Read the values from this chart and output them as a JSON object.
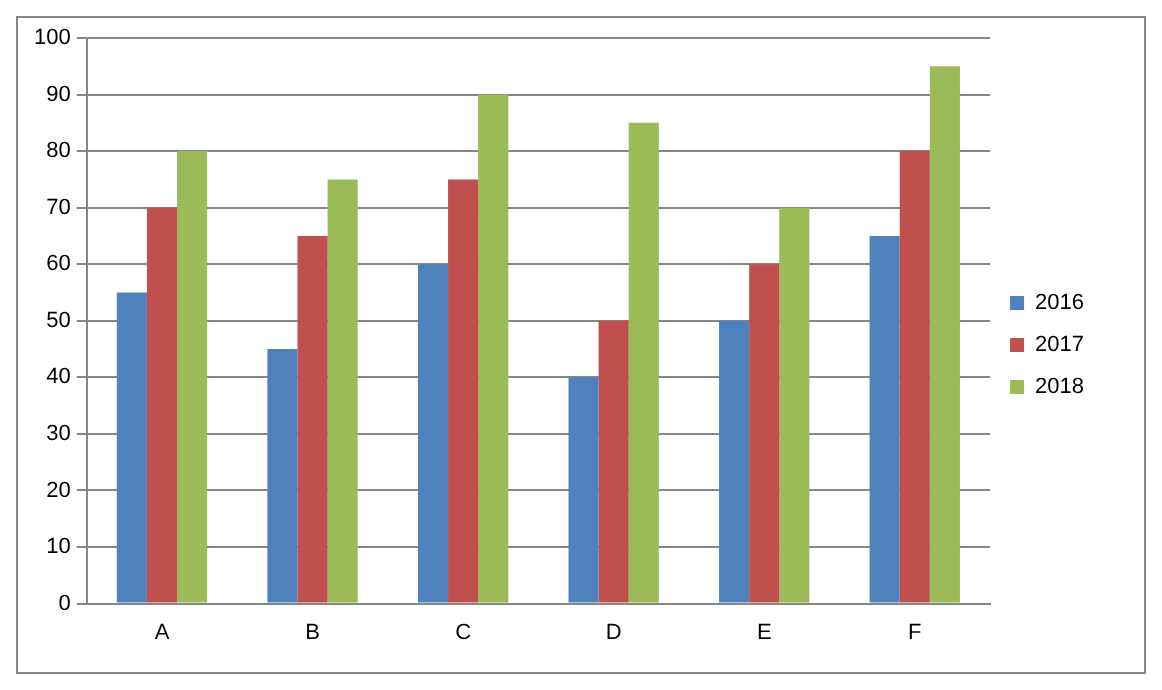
{
  "chart_data": {
    "type": "bar",
    "categories": [
      "A",
      "B",
      "C",
      "D",
      "E",
      "F"
    ],
    "series": [
      {
        "name": "2016",
        "color": "#4f81bd",
        "values": [
          55,
          45,
          60,
          40,
          50,
          65
        ]
      },
      {
        "name": "2017",
        "color": "#c0504d",
        "values": [
          70,
          65,
          75,
          50,
          60,
          80
        ]
      },
      {
        "name": "2018",
        "color": "#9bbb59",
        "values": [
          80,
          75,
          90,
          85,
          70,
          95
        ]
      }
    ],
    "ylim": [
      0,
      100
    ],
    "yticks": [
      0,
      10,
      20,
      30,
      40,
      50,
      60,
      70,
      80,
      90,
      100
    ],
    "grid": "y",
    "legend": "right"
  }
}
